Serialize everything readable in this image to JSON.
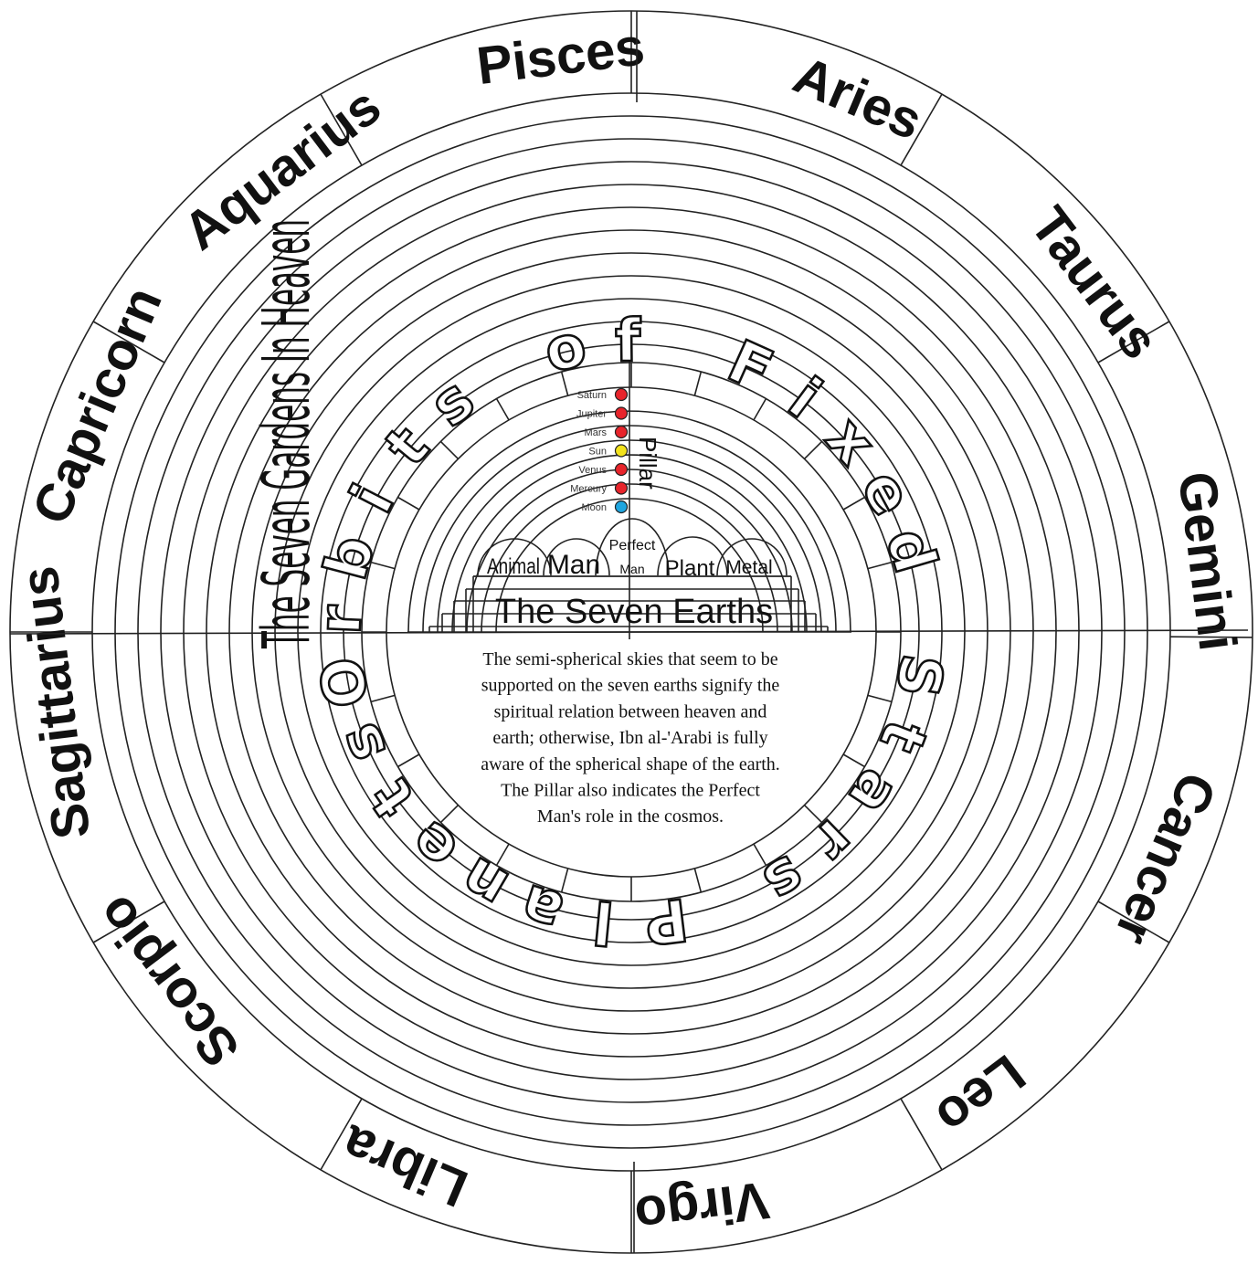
{
  "zodiac_signs": [
    {
      "name": "Pisces",
      "angle": 97
    },
    {
      "name": "Aries",
      "angle": 67
    },
    {
      "name": "Taurus",
      "angle": 37
    },
    {
      "name": "Gemini",
      "angle": 7
    },
    {
      "name": "Cancer",
      "angle": -23
    },
    {
      "name": "Leo",
      "angle": -53
    },
    {
      "name": "Virgo",
      "angle": -83
    },
    {
      "name": "Libra",
      "angle": -113
    },
    {
      "name": "Scorpio",
      "angle": -143
    },
    {
      "name": "Sagittarius",
      "angle": -173
    },
    {
      "name": "Capricorn",
      "angle": 157
    },
    {
      "name": "Aquarius",
      "angle": 127
    }
  ],
  "zodiac_divider_angles": [
    -0.5,
    30,
    60,
    90,
    120,
    150,
    180,
    210,
    240,
    270,
    300,
    330
  ],
  "orbits_text_letters": [
    "O",
    "r",
    "b",
    "i",
    "t",
    "s",
    " ",
    "o",
    "f",
    " ",
    "F",
    "i",
    "x",
    "e",
    "d",
    " ",
    "S",
    "t",
    "a",
    "r",
    "s",
    " ",
    "P",
    "l",
    "a",
    "n",
    "e",
    "t",
    "s"
  ],
  "gardens_text": "The Seven Gardens In Heaven",
  "planets": [
    {
      "name": "Saturn",
      "color": "#e8242b"
    },
    {
      "name": "Jupiter",
      "color": "#e8242b"
    },
    {
      "name": "Mars",
      "color": "#e8242b"
    },
    {
      "name": "Sun",
      "color": "#f2e21b"
    },
    {
      "name": "Venus",
      "color": "#e8242b"
    },
    {
      "name": "Mercury",
      "color": "#e8242b"
    },
    {
      "name": "Moon",
      "color": "#1fa6e0"
    }
  ],
  "pillar_label": "Pillar",
  "earths": {
    "title": "The Seven Earths",
    "labels": [
      "Animal",
      "Man",
      "Perfect",
      "Man",
      "Plant",
      "Metal"
    ]
  },
  "caption_lines": [
    "The semi-spherical skies that seem to be",
    "supported on the seven earths signify the",
    "spiritual relation between heaven and",
    "earth; otherwise, Ibn al-'Arabi is fully",
    "aware of the spherical shape of the earth.",
    "The Pillar also indicates the Perfect",
    "Man's role in the cosmos."
  ]
}
